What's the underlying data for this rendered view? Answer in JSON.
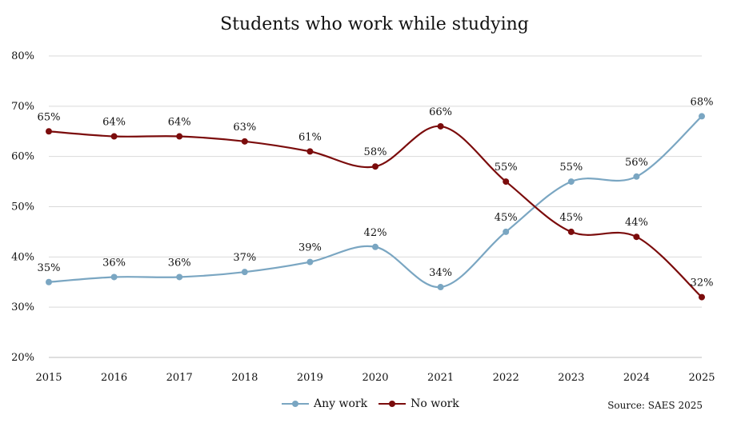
{
  "chart_data": {
    "type": "line",
    "title": "Students who work while studying",
    "x": [
      "2015",
      "2016",
      "2017",
      "2018",
      "2019",
      "2020",
      "2021",
      "2022",
      "2023",
      "2024",
      "2025"
    ],
    "ylim": [
      20,
      80
    ],
    "yticks": [
      "20%",
      "30%",
      "40%",
      "50%",
      "60%",
      "70%",
      "80%"
    ],
    "ytick_values": [
      20,
      30,
      40,
      50,
      60,
      70,
      80
    ],
    "grid": true,
    "legend_position": "bottom",
    "series": [
      {
        "name": "Any work",
        "color": "#7aa6c2",
        "values": [
          35,
          36,
          36,
          37,
          39,
          42,
          34,
          45,
          55,
          56,
          68
        ],
        "labels": [
          "35%",
          "36%",
          "36%",
          "37%",
          "39%",
          "42%",
          "34%",
          "45%",
          "55%",
          "56%",
          "68%"
        ]
      },
      {
        "name": "No work",
        "color": "#7b0c0c",
        "values": [
          65,
          64,
          64,
          63,
          61,
          58,
          66,
          55,
          45,
          44,
          32
        ],
        "labels": [
          "65%",
          "64%",
          "64%",
          "63%",
          "61%",
          "58%",
          "66%",
          "55%",
          "45%",
          "44%",
          "32%"
        ]
      }
    ],
    "source": "Source: SAES 2025"
  }
}
